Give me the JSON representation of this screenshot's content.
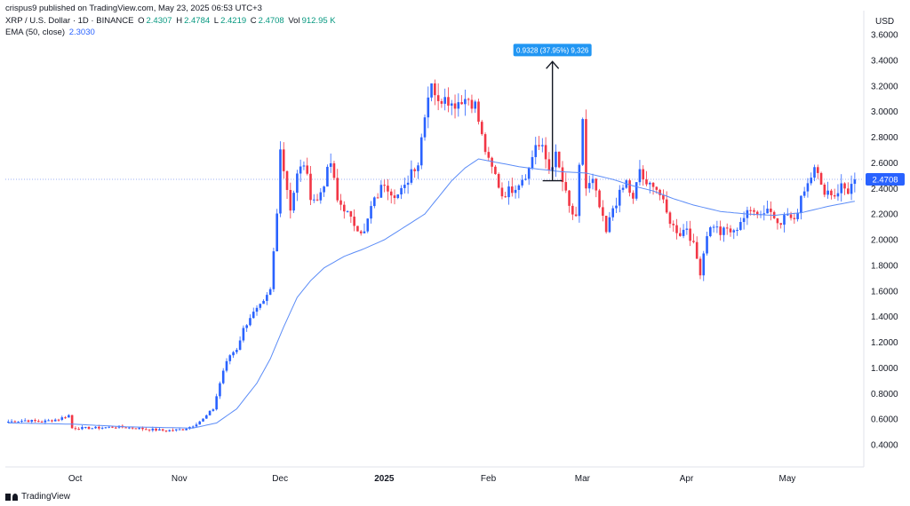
{
  "header": {
    "published": "crispus9 published on TradingView.com, May 23, 2025 06:53 UTC+3"
  },
  "legend": {
    "symbol": "XRP / U.S. Dollar · 1D · BINANCE",
    "o_label": "O",
    "o_value": "2.4307",
    "h_label": "H",
    "h_value": "2.4784",
    "l_label": "L",
    "l_value": "2.4219",
    "c_label": "C",
    "c_value": "2.4708",
    "v_label": "Vol",
    "v_value": "912.95 K",
    "ema_label": "EMA (50, close)",
    "ema_value": "2.3030"
  },
  "axis": {
    "currency": "USD"
  },
  "measure": {
    "label": "0.9328 (37.95%) 9,326"
  },
  "footer": {
    "brand": "TradingView"
  },
  "colors": {
    "up": "#2962ff",
    "down": "#f23645",
    "ema": "#5b8cf7",
    "measure_box": "#2196f3",
    "current_price_line": "#9db2f5"
  },
  "chart_data": {
    "type": "candlestick",
    "title": "XRP / U.S. Dollar · 1D · BINANCE",
    "y_ticks": [
      "3.6000",
      "3.4000",
      "3.2000",
      "3.0000",
      "2.8000",
      "2.6000",
      "2.4000",
      "2.2000",
      "2.0000",
      "1.8000",
      "1.6000",
      "1.4000",
      "1.2000",
      "1.0000",
      "0.8000",
      "0.6000",
      "0.4000"
    ],
    "ylim": [
      0.25,
      3.7
    ],
    "x_ticks": [
      {
        "label": "Oct",
        "index": 20,
        "bold": false
      },
      {
        "label": "Nov",
        "index": 51,
        "bold": false
      },
      {
        "label": "Dec",
        "index": 81,
        "bold": false
      },
      {
        "label": "2025",
        "index": 112,
        "bold": true
      },
      {
        "label": "Feb",
        "index": 143,
        "bold": false
      },
      {
        "label": "Mar",
        "index": 171,
        "bold": false
      },
      {
        "label": "Apr",
        "index": 202,
        "bold": false
      },
      {
        "label": "May",
        "index": 232,
        "bold": false
      }
    ],
    "current_price": 2.4708,
    "measure": {
      "from_index": 162,
      "from_price": 2.46,
      "to_price": 3.39
    },
    "ema_keys": [
      [
        0,
        0.57
      ],
      [
        20,
        0.56
      ],
      [
        35,
        0.54
      ],
      [
        55,
        0.53
      ],
      [
        62,
        0.57
      ],
      [
        68,
        0.68
      ],
      [
        74,
        0.88
      ],
      [
        78,
        1.07
      ],
      [
        82,
        1.32
      ],
      [
        86,
        1.55
      ],
      [
        90,
        1.68
      ],
      [
        94,
        1.78
      ],
      [
        100,
        1.87
      ],
      [
        106,
        1.93
      ],
      [
        112,
        2.0
      ],
      [
        118,
        2.1
      ],
      [
        124,
        2.2
      ],
      [
        128,
        2.33
      ],
      [
        132,
        2.46
      ],
      [
        136,
        2.56
      ],
      [
        140,
        2.63
      ],
      [
        146,
        2.6
      ],
      [
        152,
        2.57
      ],
      [
        158,
        2.55
      ],
      [
        165,
        2.53
      ],
      [
        172,
        2.52
      ],
      [
        180,
        2.47
      ],
      [
        186,
        2.42
      ],
      [
        192,
        2.38
      ],
      [
        198,
        2.32
      ],
      [
        204,
        2.27
      ],
      [
        212,
        2.22
      ],
      [
        220,
        2.2
      ],
      [
        228,
        2.19
      ],
      [
        236,
        2.21
      ],
      [
        244,
        2.26
      ],
      [
        252,
        2.3
      ]
    ],
    "close_keys": [
      [
        0,
        0.58
      ],
      [
        5,
        0.59
      ],
      [
        10,
        0.58
      ],
      [
        15,
        0.6
      ],
      [
        18,
        0.63
      ],
      [
        19,
        0.53
      ],
      [
        25,
        0.53
      ],
      [
        32,
        0.54
      ],
      [
        38,
        0.53
      ],
      [
        42,
        0.52
      ],
      [
        47,
        0.51
      ],
      [
        52,
        0.52
      ],
      [
        55,
        0.55
      ],
      [
        58,
        0.6
      ],
      [
        61,
        0.68
      ],
      [
        64,
        0.98
      ],
      [
        66,
        1.1
      ],
      [
        68,
        1.15
      ],
      [
        70,
        1.3
      ],
      [
        72,
        1.4
      ],
      [
        74,
        1.45
      ],
      [
        76,
        1.5
      ],
      [
        78,
        1.6
      ],
      [
        80,
        2.2
      ],
      [
        81,
        2.75
      ],
      [
        82,
        2.55
      ],
      [
        84,
        2.25
      ],
      [
        86,
        2.5
      ],
      [
        88,
        2.6
      ],
      [
        90,
        2.35
      ],
      [
        92,
        2.3
      ],
      [
        94,
        2.45
      ],
      [
        96,
        2.6
      ],
      [
        98,
        2.3
      ],
      [
        100,
        2.25
      ],
      [
        102,
        2.15
      ],
      [
        104,
        2.1
      ],
      [
        106,
        2.05
      ],
      [
        108,
        2.25
      ],
      [
        110,
        2.35
      ],
      [
        112,
        2.45
      ],
      [
        114,
        2.38
      ],
      [
        116,
        2.35
      ],
      [
        118,
        2.4
      ],
      [
        120,
        2.55
      ],
      [
        122,
        2.6
      ],
      [
        124,
        3.0
      ],
      [
        126,
        3.25
      ],
      [
        128,
        3.05
      ],
      [
        130,
        3.15
      ],
      [
        132,
        3.05
      ],
      [
        135,
        3.1
      ],
      [
        137,
        3.1
      ],
      [
        139,
        3.05
      ],
      [
        141,
        2.8
      ],
      [
        143,
        2.6
      ],
      [
        145,
        2.5
      ],
      [
        147,
        2.35
      ],
      [
        150,
        2.4
      ],
      [
        152,
        2.45
      ],
      [
        155,
        2.55
      ],
      [
        157,
        2.75
      ],
      [
        159,
        2.7
      ],
      [
        161,
        2.55
      ],
      [
        163,
        2.65
      ],
      [
        165,
        2.45
      ],
      [
        167,
        2.25
      ],
      [
        169,
        2.15
      ],
      [
        171,
        2.95
      ],
      [
        172,
        2.4
      ],
      [
        174,
        2.45
      ],
      [
        176,
        2.25
      ],
      [
        178,
        2.05
      ],
      [
        180,
        2.25
      ],
      [
        182,
        2.35
      ],
      [
        184,
        2.45
      ],
      [
        186,
        2.3
      ],
      [
        188,
        2.55
      ],
      [
        190,
        2.4
      ],
      [
        192,
        2.45
      ],
      [
        194,
        2.35
      ],
      [
        196,
        2.2
      ],
      [
        198,
        2.1
      ],
      [
        200,
        2.05
      ],
      [
        202,
        2.1
      ],
      [
        204,
        1.95
      ],
      [
        206,
        1.75
      ],
      [
        208,
        2.05
      ],
      [
        210,
        2.12
      ],
      [
        212,
        2.05
      ],
      [
        214,
        2.08
      ],
      [
        216,
        2.05
      ],
      [
        218,
        2.15
      ],
      [
        220,
        2.2
      ],
      [
        222,
        2.25
      ],
      [
        224,
        2.2
      ],
      [
        226,
        2.25
      ],
      [
        228,
        2.18
      ],
      [
        230,
        2.15
      ],
      [
        232,
        2.2
      ],
      [
        234,
        2.13
      ],
      [
        236,
        2.35
      ],
      [
        238,
        2.45
      ],
      [
        240,
        2.6
      ],
      [
        242,
        2.4
      ],
      [
        244,
        2.38
      ],
      [
        246,
        2.35
      ],
      [
        248,
        2.42
      ],
      [
        250,
        2.38
      ],
      [
        252,
        2.47
      ]
    ],
    "last_index": 252
  }
}
